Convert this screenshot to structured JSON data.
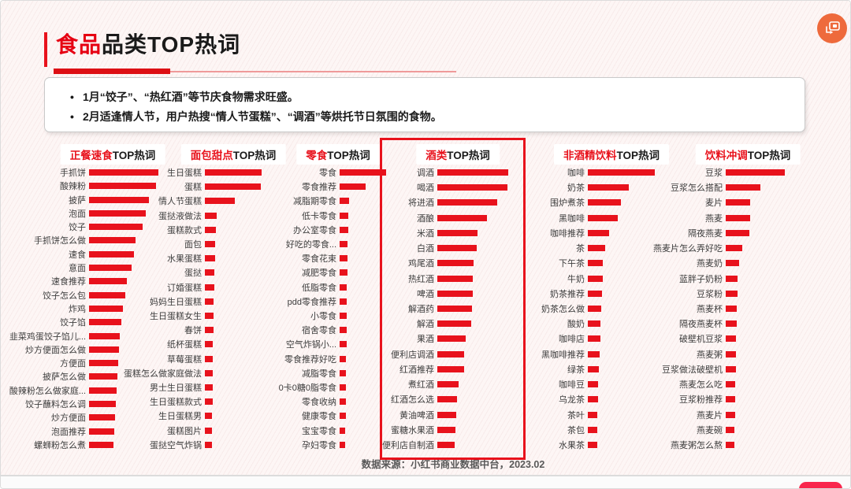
{
  "page": {
    "title": {
      "highlight": "食品",
      "rest": "品类TOP热词"
    },
    "insights": [
      "1月“饺子”、“热红酒”等节庆食物需求旺盛。",
      "2月适逢情人节，用户热搜“情人节蛋糕”、“调酒”等烘托节日氛围的食物。"
    ],
    "footer": "数据来源：小红书商业数据中台，2023.02",
    "accent_color": "#e8121c"
  },
  "icons": {
    "floating_widget": "slides-switcher-icon",
    "bottom_badge": "red-pill-badge"
  },
  "chart_data": [
    {
      "type": "bar",
      "orientation": "horizontal",
      "title_highlight": "正餐速食",
      "title_suffix": "TOP热词",
      "highlighted": false,
      "axis": "none",
      "value_scale": "relative-search-heat-px",
      "categories": [
        "手抓饼",
        "酸辣粉",
        "披萨",
        "泡面",
        "饺子",
        "手抓饼怎么做",
        "速食",
        "意面",
        "速食推荐",
        "饺子怎么包",
        "炸鸡",
        "饺子馅",
        "韭菜鸡蛋饺子馅儿...",
        "炒方便面怎么做",
        "方便面",
        "披萨怎么做",
        "酸辣粉怎么做家庭...",
        "饺子蘸料怎么调",
        "炒方便面",
        "泡面推荐",
        "螺蛳粉怎么煮"
      ],
      "values": [
        88,
        85,
        76,
        72,
        68,
        59,
        57,
        54,
        48,
        46,
        43,
        41,
        39,
        38,
        37,
        36,
        35,
        34,
        33,
        32,
        31
      ]
    },
    {
      "type": "bar",
      "orientation": "horizontal",
      "title_highlight": "面包甜点",
      "title_suffix": "TOP热词",
      "highlighted": false,
      "axis": "none",
      "value_scale": "relative-search-heat-px",
      "categories": [
        "生日蛋糕",
        "蛋糕",
        "情人节蛋糕",
        "蛋挞液做法",
        "蛋糕款式",
        "面包",
        "水果蛋糕",
        "蛋挞",
        "订婚蛋糕",
        "妈妈生日蛋糕",
        "生日蛋糕女生",
        "春饼",
        "纸杯蛋糕",
        "草莓蛋糕",
        "蛋糕怎么做家庭做法",
        "男士生日蛋糕",
        "生日蛋糕款式",
        "生日蛋糕男",
        "蛋糕图片",
        "蛋挞空气炸锅"
      ],
      "values": [
        72,
        71,
        38,
        15,
        14,
        13,
        13,
        12,
        12,
        11,
        11,
        11,
        10,
        10,
        10,
        10,
        10,
        9,
        9,
        9
      ]
    },
    {
      "type": "bar",
      "orientation": "horizontal",
      "title_highlight": "零食",
      "title_suffix": "TOP热词",
      "highlighted": false,
      "axis": "none",
      "value_scale": "relative-search-heat-px",
      "categories": [
        "零食",
        "零食推荐",
        "减脂期零食",
        "低卡零食",
        "办公室零食",
        "好吃的零食...",
        "零食花束",
        "减肥零食",
        "低脂零食",
        "pdd零食推荐",
        "小零食",
        "宿舍零食",
        "空气炸锅小...",
        "零食推荐好吃",
        "减脂零食",
        "0卡0糖0脂零食",
        "零食收纳",
        "健康零食",
        "宝宝零食",
        "孕妇零食"
      ],
      "values": [
        59,
        33,
        12,
        11,
        11,
        10,
        10,
        10,
        9,
        9,
        9,
        9,
        9,
        8,
        8,
        8,
        8,
        8,
        7,
        7
      ]
    },
    {
      "type": "bar",
      "orientation": "horizontal",
      "title_highlight": "酒类",
      "title_suffix": "TOP热词",
      "highlighted": true,
      "axis": "none",
      "value_scale": "relative-search-heat-px",
      "categories": [
        "调酒",
        "喝酒",
        "将进酒",
        "酒酿",
        "米酒",
        "白酒",
        "鸡尾酒",
        "热红酒",
        "啤酒",
        "解酒药",
        "解酒",
        "果酒",
        "便利店调酒",
        "红酒推荐",
        "煮红酒",
        "红酒怎么选",
        "黄油啤酒",
        "蜜糖水果酒",
        "便利店自制酒"
      ],
      "values": [
        90,
        89,
        76,
        63,
        51,
        50,
        46,
        45,
        45,
        44,
        43,
        36,
        34,
        34,
        27,
        25,
        24,
        23,
        22
      ]
    },
    {
      "type": "bar",
      "orientation": "horizontal",
      "title_highlight": "非酒精饮料",
      "title_suffix": "TOP热词",
      "highlighted": false,
      "axis": "none",
      "value_scale": "relative-search-heat-px",
      "categories": [
        "咖啡",
        "奶茶",
        "围炉煮茶",
        "黑咖啡",
        "咖啡推荐",
        "茶",
        "下午茶",
        "牛奶",
        "奶茶推荐",
        "奶茶怎么做",
        "酸奶",
        "咖啡店",
        "黑咖啡推荐",
        "绿茶",
        "咖啡豆",
        "乌龙茶",
        "茶叶",
        "茶包",
        "水果茶"
      ],
      "values": [
        85,
        52,
        42,
        38,
        27,
        22,
        19,
        19,
        18,
        17,
        16,
        16,
        15,
        14,
        13,
        13,
        12,
        12,
        12
      ]
    },
    {
      "type": "bar",
      "orientation": "horizontal",
      "title_highlight": "饮料冲调",
      "title_suffix": "TOP热词",
      "highlighted": false,
      "axis": "none",
      "value_scale": "relative-search-heat-px",
      "categories": [
        "豆浆",
        "豆浆怎么搭配",
        "麦片",
        "燕麦",
        "隔夜燕麦",
        "燕麦片怎么弄好吃",
        "燕麦奶",
        "蓝胖子奶粉",
        "豆浆粉",
        "燕麦杯",
        "隔夜燕麦杯",
        "破壁机豆浆",
        "燕麦粥",
        "豆浆做法破壁机",
        "燕麦怎么吃",
        "豆浆粉推荐",
        "燕麦片",
        "燕麦碗",
        "燕麦粥怎么熬"
      ],
      "values": [
        75,
        44,
        31,
        31,
        30,
        21,
        17,
        15,
        15,
        14,
        14,
        13,
        13,
        13,
        12,
        12,
        12,
        11,
        11
      ]
    }
  ]
}
